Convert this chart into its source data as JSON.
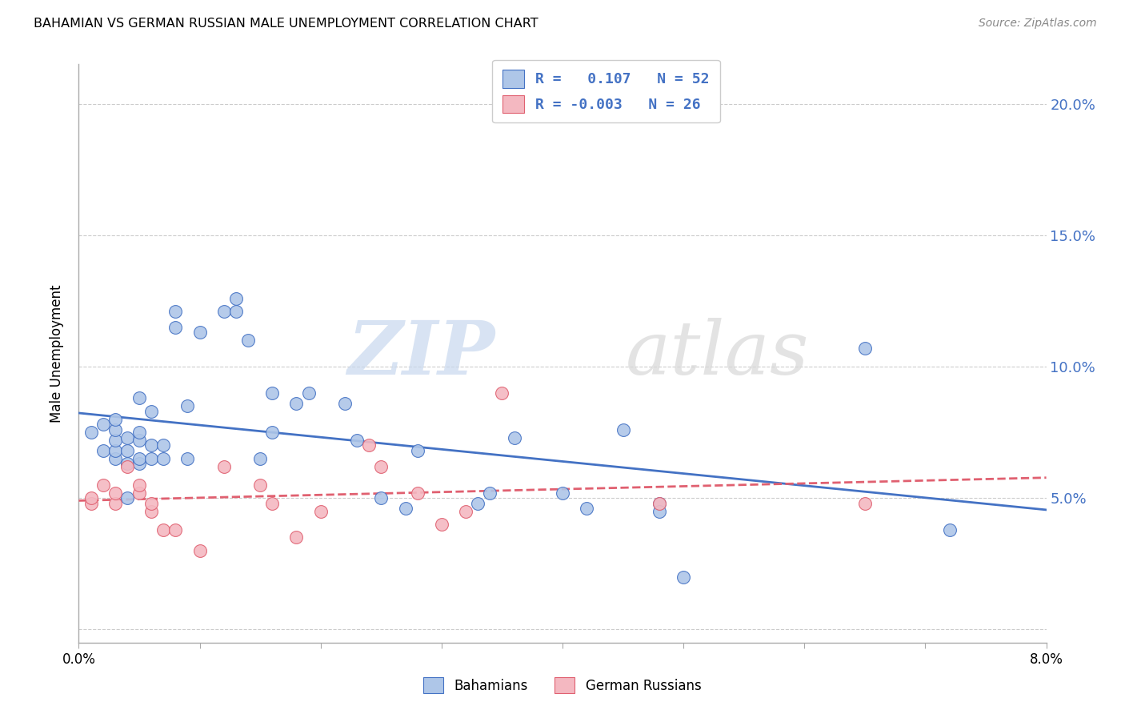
{
  "title": "BAHAMIAN VS GERMAN RUSSIAN MALE UNEMPLOYMENT CORRELATION CHART",
  "source": "Source: ZipAtlas.com",
  "ylabel": "Male Unemployment",
  "xlim": [
    0.0,
    0.08
  ],
  "ylim": [
    -0.005,
    0.215
  ],
  "yticks": [
    0.0,
    0.05,
    0.1,
    0.15,
    0.2
  ],
  "ytick_labels": [
    "",
    "5.0%",
    "10.0%",
    "15.0%",
    "20.0%"
  ],
  "xticks": [
    0.0,
    0.01,
    0.02,
    0.03,
    0.04,
    0.05,
    0.06,
    0.07,
    0.08
  ],
  "xtick_labels": [
    "0.0%",
    "",
    "",
    "",
    "",
    "",
    "",
    "",
    "8.0%"
  ],
  "bahamians_color": "#aec6e8",
  "german_russians_color": "#f4b8c1",
  "trend_bahamians_color": "#4472c4",
  "trend_german_russians_color": "#e06070",
  "legend_line1": "R =   0.107   N = 52",
  "legend_line2": "R = -0.003   N = 26",
  "bahamians_x": [
    0.001,
    0.002,
    0.002,
    0.003,
    0.003,
    0.003,
    0.003,
    0.003,
    0.004,
    0.004,
    0.004,
    0.004,
    0.005,
    0.005,
    0.005,
    0.005,
    0.005,
    0.006,
    0.006,
    0.006,
    0.007,
    0.007,
    0.008,
    0.008,
    0.009,
    0.009,
    0.01,
    0.012,
    0.013,
    0.013,
    0.014,
    0.015,
    0.016,
    0.016,
    0.018,
    0.019,
    0.022,
    0.023,
    0.025,
    0.027,
    0.028,
    0.033,
    0.034,
    0.036,
    0.04,
    0.042,
    0.045,
    0.048,
    0.048,
    0.05,
    0.065,
    0.072
  ],
  "bahamians_y": [
    0.075,
    0.068,
    0.078,
    0.065,
    0.068,
    0.072,
    0.076,
    0.08,
    0.05,
    0.063,
    0.068,
    0.073,
    0.063,
    0.065,
    0.072,
    0.075,
    0.088,
    0.065,
    0.07,
    0.083,
    0.065,
    0.07,
    0.115,
    0.121,
    0.065,
    0.085,
    0.113,
    0.121,
    0.121,
    0.126,
    0.11,
    0.065,
    0.09,
    0.075,
    0.086,
    0.09,
    0.086,
    0.072,
    0.05,
    0.046,
    0.068,
    0.048,
    0.052,
    0.073,
    0.052,
    0.046,
    0.076,
    0.048,
    0.045,
    0.02,
    0.107,
    0.038
  ],
  "german_russians_x": [
    0.001,
    0.001,
    0.002,
    0.003,
    0.003,
    0.004,
    0.005,
    0.005,
    0.006,
    0.006,
    0.007,
    0.008,
    0.01,
    0.012,
    0.015,
    0.016,
    0.018,
    0.02,
    0.024,
    0.025,
    0.028,
    0.03,
    0.032,
    0.035,
    0.048,
    0.065
  ],
  "german_russians_y": [
    0.048,
    0.05,
    0.055,
    0.048,
    0.052,
    0.062,
    0.052,
    0.055,
    0.045,
    0.048,
    0.038,
    0.038,
    0.03,
    0.062,
    0.055,
    0.048,
    0.035,
    0.045,
    0.07,
    0.062,
    0.052,
    0.04,
    0.045,
    0.09,
    0.048,
    0.048
  ],
  "watermark_zip": "ZIP",
  "watermark_atlas": "atlas",
  "background_color": "#ffffff",
  "grid_color": "#cccccc"
}
